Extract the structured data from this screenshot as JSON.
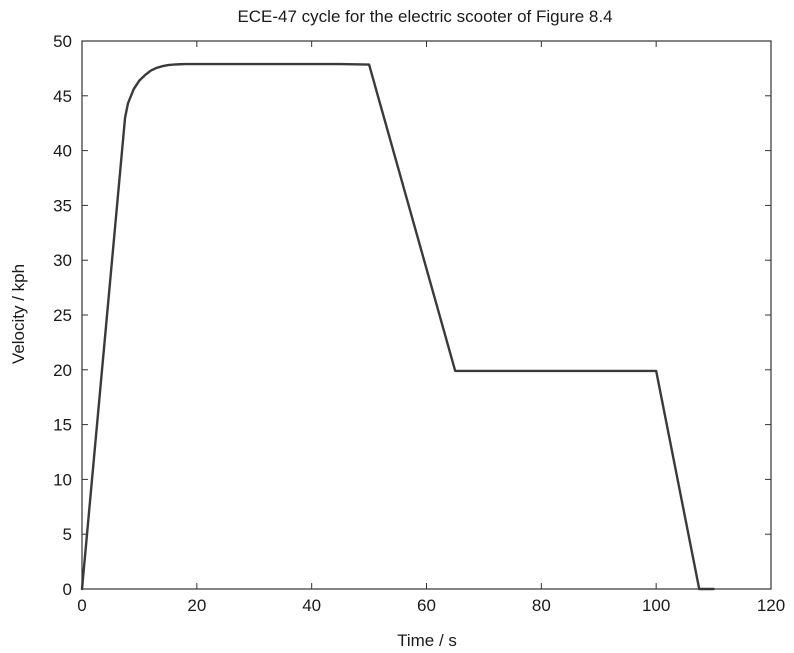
{
  "chart_data": {
    "type": "line",
    "title": "ECE-47 cycle for the electric scooter of Figure 8.4",
    "xlabel": "Time / s",
    "ylabel": "Velocity / kph",
    "xlim": [
      0,
      120
    ],
    "ylim": [
      0,
      50
    ],
    "xticks": [
      0,
      20,
      40,
      60,
      80,
      100,
      120
    ],
    "yticks": [
      0,
      5,
      10,
      15,
      20,
      25,
      30,
      35,
      40,
      45,
      50
    ],
    "grid": false,
    "series": [
      {
        "x": [
          0,
          7.5,
          8,
          9,
          10,
          11,
          12,
          13,
          14,
          15,
          16,
          17,
          18,
          20,
          25,
          30,
          35,
          40,
          45,
          50,
          65,
          80,
          90,
          100,
          107.5,
          110
        ],
        "y": [
          0,
          43,
          44.3,
          45.6,
          46.4,
          46.9,
          47.3,
          47.55,
          47.7,
          47.8,
          47.85,
          47.88,
          47.9,
          47.9,
          47.9,
          47.9,
          47.9,
          47.9,
          47.9,
          47.85,
          19.9,
          19.9,
          19.9,
          19.9,
          0,
          0
        ],
        "color": "#3a3a3a"
      }
    ]
  }
}
